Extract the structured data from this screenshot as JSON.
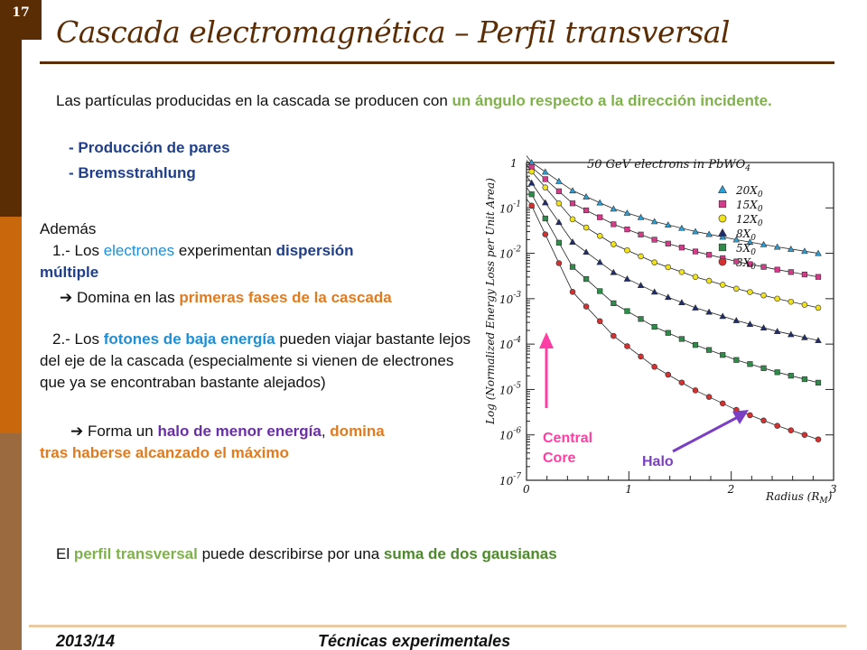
{
  "slide": {
    "number": "17",
    "title": "Cascada electromagnética – Perfil transversal"
  },
  "body": {
    "intro_a": "Las partículas producidas en la cascada se producen con ",
    "intro_b": "un ángulo respecto a la dirección incidente.",
    "bullet_1": "- Producción de pares",
    "bullet_2": "- Bremsstrahlung",
    "ademas": "Además",
    "item1_a": "1.- Los ",
    "item1_b": "electrones",
    "item1_c": " experimentan ",
    "item1_d": "dispersión",
    "item1_e": "múltiple",
    "item1_arrow": "➔",
    "item1_f": " Domina en las ",
    "item1_g": "primeras fases de la cascada",
    "item2_a": "2.- Los ",
    "item2_b": "fotones de baja energía",
    "item2_c": " pueden viajar bastante lejos del eje de la cascada (especialmente si vienen de electrones que ya se encontraban bastante alejados)",
    "item2_arrow": "➔",
    "item2_d": " Forma un ",
    "item2_e": "halo de menor energía",
    "item2_f": ", ",
    "item2_g": "domina",
    "item2_h": "tras haberse alcanzado el máximo",
    "final_a": "El ",
    "final_b": "perfil transversal",
    "final_c": " puede describirse por una ",
    "final_d": "suma de dos gausianas"
  },
  "chart_data": {
    "type": "scatter",
    "title": "50 GeV electrons in PbWO4",
    "xlabel": "Radius (RM)",
    "ylabel": "Log (Normalized Energy Loss per Unit Area)",
    "xlim": [
      0,
      3
    ],
    "ylim_log10": [
      -7,
      0
    ],
    "x_ticks": [
      "0",
      "1",
      "2",
      "3"
    ],
    "y_ticks": [
      "1",
      "10^-1",
      "10^-2",
      "10^-3",
      "10^-4",
      "10^-5",
      "10^-6",
      "10^-7"
    ],
    "legend_position": "top-right",
    "series": [
      {
        "name": "20X0",
        "marker": "triangle",
        "color": "#2aa0d8",
        "x": [
          0.05,
          0.45,
          0.85,
          1.25,
          1.65,
          2.05,
          2.45,
          2.85
        ],
        "log10_y": [
          0.0,
          -0.62,
          -1.02,
          -1.3,
          -1.52,
          -1.7,
          -1.86,
          -2.0
        ]
      },
      {
        "name": "15X0",
        "marker": "square",
        "color": "#d63a8a",
        "x": [
          0.05,
          0.45,
          0.85,
          1.25,
          1.65,
          2.05,
          2.45,
          2.85
        ],
        "log10_y": [
          -0.1,
          -0.9,
          -1.36,
          -1.7,
          -1.96,
          -2.18,
          -2.36,
          -2.52
        ]
      },
      {
        "name": "12X0",
        "marker": "circle",
        "color": "#f0e21a",
        "x": [
          0.05,
          0.45,
          0.85,
          1.25,
          1.65,
          2.05,
          2.45,
          2.85
        ],
        "log10_y": [
          -0.2,
          -1.25,
          -1.8,
          -2.2,
          -2.52,
          -2.78,
          -3.0,
          -3.2
        ]
      },
      {
        "name": "8X0",
        "marker": "triangle",
        "color": "#1f2d6e",
        "x": [
          0.05,
          0.45,
          0.85,
          1.25,
          1.65,
          2.05,
          2.45,
          2.85
        ],
        "log10_y": [
          -0.45,
          -1.75,
          -2.42,
          -2.85,
          -3.2,
          -3.48,
          -3.72,
          -3.92
        ]
      },
      {
        "name": "5X0",
        "marker": "square",
        "color": "#2e8b4a",
        "x": [
          0.05,
          0.45,
          0.85,
          1.25,
          1.65,
          2.05,
          2.45,
          2.85
        ],
        "log10_y": [
          -0.7,
          -2.3,
          -3.1,
          -3.62,
          -4.02,
          -4.35,
          -4.62,
          -4.85
        ]
      },
      {
        "name": "3X0",
        "marker": "circle",
        "color": "#d63030",
        "x": [
          0.05,
          0.45,
          0.85,
          1.25,
          1.65,
          2.05,
          2.45,
          2.85
        ],
        "log10_y": [
          -0.95,
          -2.85,
          -3.82,
          -4.5,
          -5.02,
          -5.45,
          -5.8,
          -6.1
        ]
      }
    ],
    "annotations": [
      {
        "text": "Central Core",
        "color": "#ff3ea5"
      },
      {
        "text": "Halo",
        "color": "#7b3fc4"
      }
    ]
  },
  "footer": {
    "year": "2013/14",
    "course": "Técnicas experimentales"
  }
}
